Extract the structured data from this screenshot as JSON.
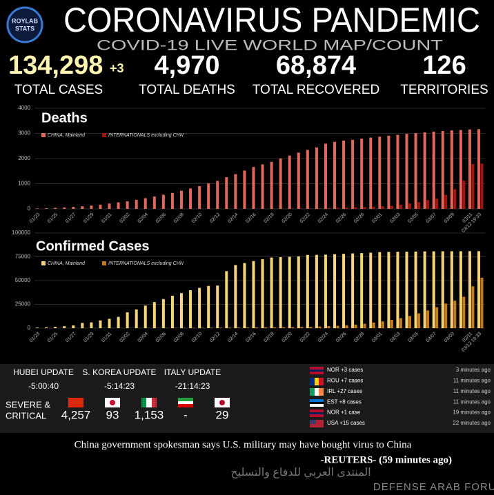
{
  "logo": {
    "line1": "ROYLAB",
    "line2": "STATS"
  },
  "header": {
    "title": "CORONAVIRUS PANDEMIC",
    "subtitle": "COVID-19 LIVE WORLD MAP/COUNT"
  },
  "stats": [
    {
      "value": "134,298",
      "extra": "+3",
      "label": "TOTAL CASES"
    },
    {
      "value": "4,970",
      "label": "TOTAL DEATHS"
    },
    {
      "value": "68,874",
      "label": "TOTAL RECOVERED"
    },
    {
      "value": "126",
      "label": "TERRITORIES"
    }
  ],
  "chart_data": [
    {
      "type": "bar",
      "title": "Deaths",
      "categories": [
        "01/23",
        null,
        "01/25",
        null,
        "01/27",
        null,
        "01/29",
        null,
        "01/31",
        null,
        "02/02",
        null,
        "02/04",
        null,
        "02/06",
        null,
        "02/08",
        null,
        "02/10",
        null,
        "02/12",
        null,
        "02/14",
        null,
        "02/16",
        null,
        "02/18",
        null,
        "02/20",
        null,
        "02/22",
        null,
        "02/24",
        null,
        "02/26",
        null,
        "02/28",
        null,
        "03/01",
        null,
        "03/03",
        null,
        "03/05",
        null,
        "03/07",
        null,
        "03/09",
        null,
        "03/11",
        "03/12 19:33"
      ],
      "series": [
        {
          "name": "CHINA, Mainland",
          "color": "#e0695c",
          "values": [
            17,
            25,
            41,
            56,
            80,
            106,
            132,
            170,
            213,
            259,
            304,
            361,
            425,
            490,
            563,
            636,
            722,
            811,
            908,
            1016,
            1113,
            1259,
            1380,
            1523,
            1665,
            1770,
            1868,
            2004,
            2118,
            2236,
            2345,
            2442,
            2592,
            2663,
            2715,
            2744,
            2788,
            2835,
            2870,
            2912,
            2943,
            2981,
            3012,
            3042,
            3070,
            3097,
            3119,
            3136,
            3158,
            3169
          ]
        },
        {
          "name": "INTERNATIONALS excluding CHN",
          "color": "#a3140f",
          "values": [
            0,
            0,
            0,
            0,
            0,
            0,
            0,
            0,
            0,
            0,
            1,
            1,
            1,
            1,
            1,
            2,
            2,
            2,
            2,
            2,
            2,
            3,
            3,
            4,
            5,
            5,
            5,
            8,
            11,
            13,
            19,
            24,
            34,
            43,
            54,
            64,
            75,
            86,
            104,
            123,
            166,
            214,
            267,
            348,
            416,
            560,
            780,
            1130,
            1780,
            1800
          ]
        }
      ],
      "ylim": [
        0,
        4000
      ],
      "yticks": [
        0,
        1000,
        2000,
        3000,
        4000
      ],
      "grid": true,
      "legend": "top-left"
    },
    {
      "type": "bar",
      "title": "Confirmed Cases",
      "categories": [
        "01/23",
        null,
        "01/25",
        null,
        "01/27",
        null,
        "01/29",
        null,
        "01/31",
        null,
        "02/02",
        null,
        "02/04",
        null,
        "02/06",
        null,
        "02/08",
        null,
        "02/10",
        null,
        "02/12",
        null,
        "02/14",
        null,
        "02/16",
        null,
        "02/18",
        null,
        "02/20",
        null,
        "02/22",
        null,
        "02/24",
        null,
        "02/26",
        null,
        "02/28",
        null,
        "03/01",
        null,
        "03/03",
        null,
        "03/05",
        null,
        "03/07",
        null,
        "03/09",
        null,
        "03/11",
        "03/12 19:33"
      ],
      "series": [
        {
          "name": "CHINA, Mainland",
          "color": "#f6d47c",
          "values": [
            643,
            920,
            1406,
            2075,
            2877,
            5509,
            6087,
            8141,
            9802,
            11891,
            16630,
            19716,
            23707,
            27440,
            30587,
            34110,
            36814,
            39829,
            42354,
            44386,
            44759,
            59895,
            66358,
            68413,
            70513,
            72434,
            74211,
            74619,
            75077,
            75550,
            77001,
            77022,
            77241,
            77754,
            78166,
            78600,
            78928,
            79356,
            79932,
            80136,
            80261,
            80386,
            80537,
            80690,
            80770,
            80823,
            80860,
            80887,
            80921,
            80945
          ]
        },
        {
          "name": "INTERNATIONALS excluding CHN",
          "color": "#c47b1f",
          "values": [
            10,
            20,
            30,
            50,
            60,
            80,
            100,
            110,
            130,
            150,
            160,
            180,
            200,
            220,
            250,
            270,
            300,
            330,
            400,
            450,
            500,
            550,
            600,
            700,
            800,
            850,
            900,
            1000,
            1100,
            1200,
            1400,
            1700,
            2100,
            2500,
            3000,
            3700,
            4600,
            5900,
            7100,
            8700,
            10500,
            12800,
            15500,
            18600,
            22000,
            25800,
            29000,
            33000,
            44000,
            53000
          ]
        }
      ],
      "ylim": [
        0,
        100000
      ],
      "yticks": [
        0,
        25000,
        50000,
        75000,
        100000
      ],
      "grid": true,
      "legend": "top-left"
    }
  ],
  "updates": [
    {
      "label": "HUBEI UPDATE",
      "time": "-5:00:40"
    },
    {
      "label": "S. KOREA UPDATE",
      "time": "-5:14:23"
    },
    {
      "label": "ITALY UPDATE",
      "time": "-21:14:23"
    }
  ],
  "severe": {
    "label": [
      "SEVERE &",
      "CRITICAL"
    ],
    "values": [
      "4,257",
      "93",
      "1,153",
      "-",
      "29"
    ]
  },
  "feed": [
    {
      "text": "NOR +3 cases",
      "time": "3 minutes ago"
    },
    {
      "text": "ROU +7 cases",
      "time": "11 minutes ago"
    },
    {
      "text": "IRL +27 cases",
      "time": "11 minutes ago"
    },
    {
      "text": "EST +8 cases",
      "time": "11 minutes ago"
    },
    {
      "text": "NOR +1 case",
      "time": "19 minutes ago"
    },
    {
      "text": "USA +15 cases",
      "time": "22 minutes ago"
    }
  ],
  "news": {
    "headline": "China government spokesman says U.S. military may have bought virus to China",
    "source": "-REUTERS- (59 minutes ago)"
  },
  "watermark": {
    "arabic": "المنتدى العربي للدفاع والتسليح",
    "english": "DEFENSE ARAB FORUM"
  }
}
